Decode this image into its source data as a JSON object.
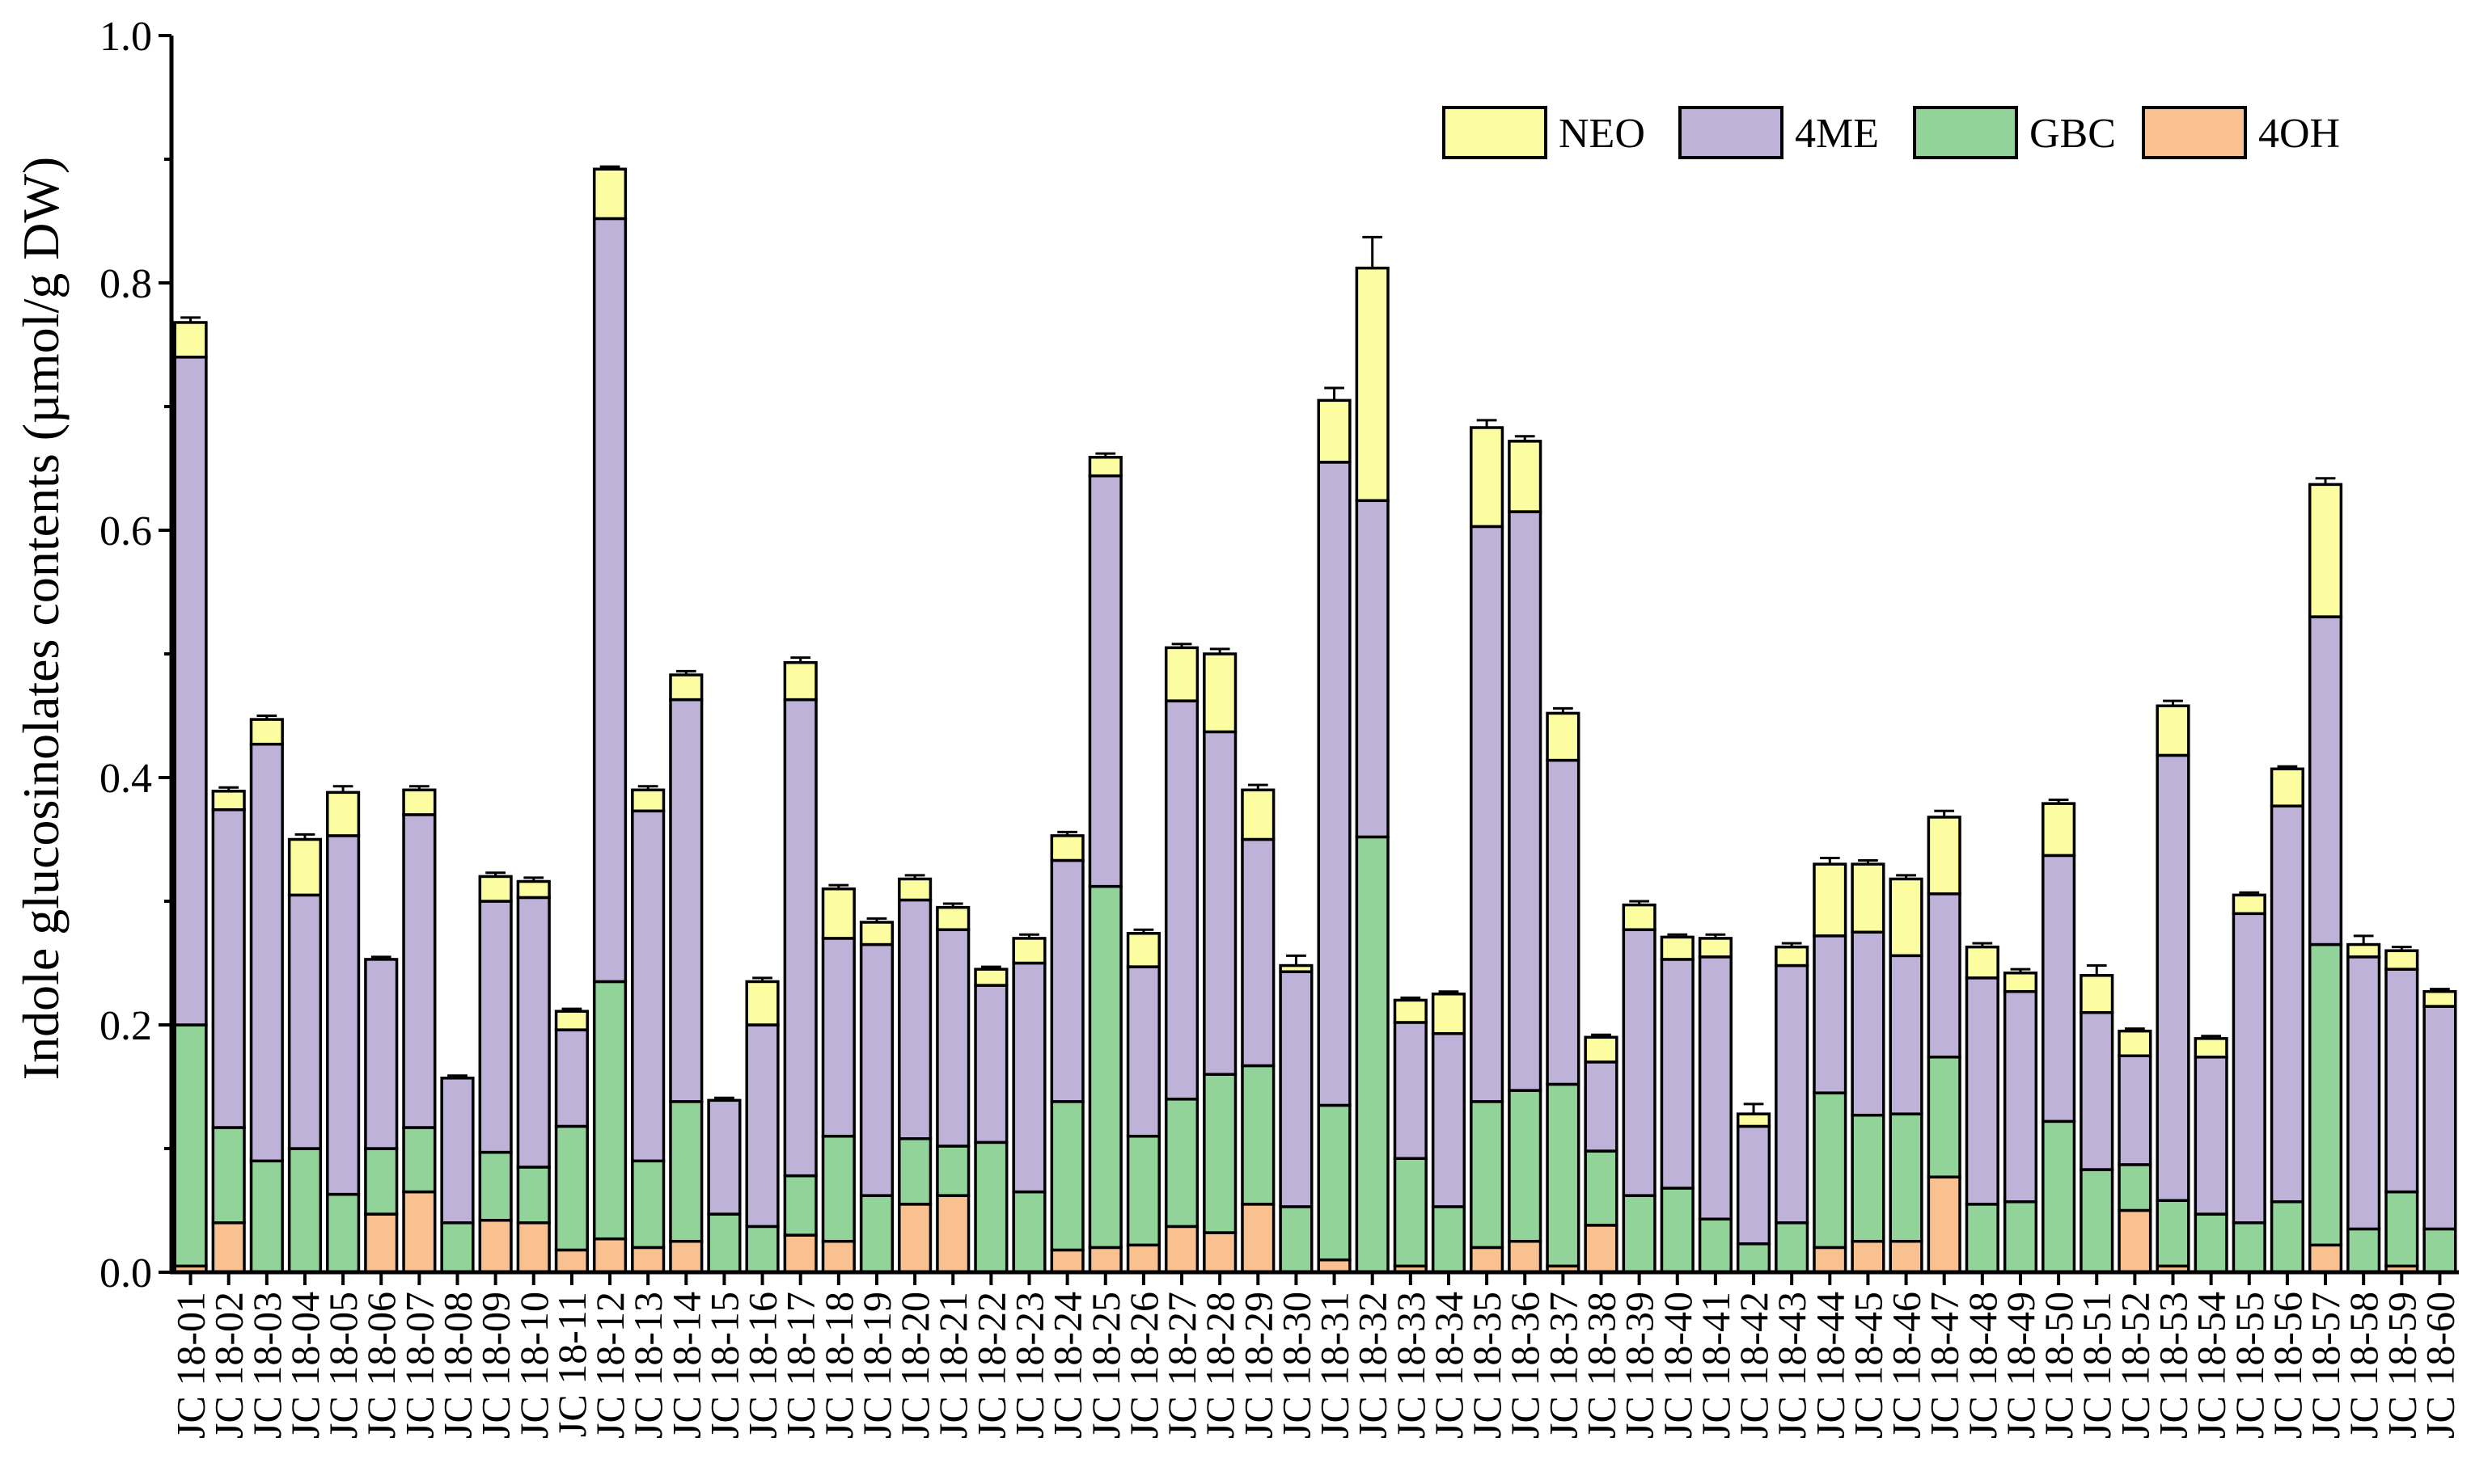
{
  "chart_data": {
    "type": "bar",
    "stacked": true,
    "title": "",
    "xlabel": "",
    "ylabel": "Indole glucosinolates contents (µmol/g DW)",
    "ylim": [
      0,
      1.0
    ],
    "yticks": [
      "0.0",
      "0.2",
      "0.4",
      "0.6",
      "0.8",
      "1.0"
    ],
    "legend_position": "top-right",
    "categories": [
      "JC 18-01",
      "JC 18-02",
      "JC 18-03",
      "JC 18-04",
      "JC 18-05",
      "JC 18-06",
      "JC 18-07",
      "JC 18-08",
      "JC 18-09",
      "JC 18-10",
      "JC 18-11",
      "JC 18-12",
      "JC 18-13",
      "JC 18-14",
      "JC 18-15",
      "JC 18-16",
      "JC 18-17",
      "JC 18-18",
      "JC 18-19",
      "JC 18-20",
      "JC 18-21",
      "JC 18-22",
      "JC 18-23",
      "JC 18-24",
      "JC 18-25",
      "JC 18-26",
      "JC 18-27",
      "JC 18-28",
      "JC 18-29",
      "JC 18-30",
      "JC 18-31",
      "JC 18-32",
      "JC 18-33",
      "JC 18-34",
      "JC 18-35",
      "JC 18-36",
      "JC 18-37",
      "JC 18-38",
      "JC 18-39",
      "JC 18-40",
      "JC 18-41",
      "JC 18-42",
      "JC 18-43",
      "JC 18-44",
      "JC 18-45",
      "JC 18-46",
      "JC 18-47",
      "JC 18-48",
      "JC 18-49",
      "JC 18-50",
      "JC 18-51",
      "JC 18-52",
      "JC 18-53",
      "JC 18-54",
      "JC 18-55",
      "JC 18-56",
      "JC 18-57",
      "JC 18-58",
      "JC 18-59",
      "JC 18-60"
    ],
    "series": [
      {
        "name": "4OH",
        "color": "#f8c18f",
        "values": [
          0.005,
          0.04,
          0.0,
          0.0,
          0.0,
          0.047,
          0.065,
          0.0,
          0.042,
          0.04,
          0.018,
          0.027,
          0.02,
          0.025,
          0.0,
          0.0,
          0.03,
          0.025,
          0.0,
          0.055,
          0.062,
          0.0,
          0.0,
          0.018,
          0.02,
          0.022,
          0.037,
          0.032,
          0.055,
          0.0,
          0.01,
          0.0,
          0.005,
          0.0,
          0.02,
          0.025,
          0.005,
          0.038,
          0.0,
          0.0,
          0.0,
          0.0,
          0.0,
          0.02,
          0.025,
          0.025,
          0.077,
          0.0,
          0.0,
          0.0,
          0.0,
          0.05,
          0.005,
          0.0,
          0.0,
          0.0,
          0.022,
          0.0,
          0.005,
          0.0
        ]
      },
      {
        "name": "GBC",
        "color": "#92d39a",
        "values": [
          0.195,
          0.077,
          0.09,
          0.1,
          0.063,
          0.053,
          0.052,
          0.04,
          0.055,
          0.045,
          0.1,
          0.208,
          0.07,
          0.113,
          0.047,
          0.037,
          0.048,
          0.085,
          0.062,
          0.053,
          0.04,
          0.105,
          0.065,
          0.12,
          0.292,
          0.088,
          0.103,
          0.128,
          0.112,
          0.053,
          0.125,
          0.352,
          0.087,
          0.053,
          0.118,
          0.122,
          0.147,
          0.06,
          0.062,
          0.068,
          0.043,
          0.023,
          0.04,
          0.125,
          0.102,
          0.103,
          0.097,
          0.055,
          0.057,
          0.122,
          0.083,
          0.037,
          0.053,
          0.047,
          0.04,
          0.057,
          0.243,
          0.035,
          0.06,
          0.035
        ]
      },
      {
        "name": "4ME",
        "color": "#bfb2d9",
        "values": [
          0.54,
          0.257,
          0.337,
          0.205,
          0.29,
          0.153,
          0.253,
          0.117,
          0.203,
          0.218,
          0.078,
          0.617,
          0.283,
          0.325,
          0.092,
          0.163,
          0.385,
          0.16,
          0.203,
          0.193,
          0.175,
          0.127,
          0.185,
          0.195,
          0.332,
          0.137,
          0.322,
          0.277,
          0.183,
          0.19,
          0.52,
          0.272,
          0.11,
          0.14,
          0.465,
          0.468,
          0.262,
          0.072,
          0.215,
          0.185,
          0.212,
          0.095,
          0.208,
          0.127,
          0.148,
          0.128,
          0.132,
          0.183,
          0.17,
          0.215,
          0.127,
          0.088,
          0.36,
          0.127,
          0.25,
          0.32,
          0.265,
          0.22,
          0.18,
          0.18
        ]
      },
      {
        "name": "NEO",
        "color": "#fcfca0",
        "values": [
          0.028,
          0.015,
          0.02,
          0.045,
          0.035,
          0.0,
          0.02,
          0.0,
          0.02,
          0.013,
          0.015,
          0.04,
          0.017,
          0.02,
          0.0,
          0.035,
          0.03,
          0.04,
          0.018,
          0.017,
          0.018,
          0.013,
          0.02,
          0.02,
          0.015,
          0.027,
          0.043,
          0.063,
          0.04,
          0.005,
          0.05,
          0.188,
          0.018,
          0.032,
          0.08,
          0.057,
          0.038,
          0.02,
          0.02,
          0.018,
          0.015,
          0.01,
          0.015,
          0.058,
          0.055,
          0.062,
          0.062,
          0.025,
          0.015,
          0.042,
          0.03,
          0.02,
          0.04,
          0.015,
          0.015,
          0.03,
          0.107,
          0.01,
          0.015,
          0.012
        ]
      }
    ],
    "error_bars": [
      0.004,
      0.003,
      0.003,
      0.004,
      0.005,
      0.002,
      0.003,
      0.002,
      0.003,
      0.003,
      0.002,
      0.002,
      0.003,
      0.003,
      0.002,
      0.003,
      0.004,
      0.003,
      0.003,
      0.003,
      0.003,
      0.002,
      0.003,
      0.003,
      0.003,
      0.003,
      0.003,
      0.004,
      0.004,
      0.008,
      0.01,
      0.025,
      0.002,
      0.002,
      0.006,
      0.004,
      0.004,
      0.002,
      0.003,
      0.002,
      0.003,
      0.008,
      0.003,
      0.005,
      0.003,
      0.003,
      0.005,
      0.003,
      0.003,
      0.003,
      0.008,
      0.002,
      0.004,
      0.002,
      0.002,
      0.002,
      0.005,
      0.007,
      0.003,
      0.002
    ]
  }
}
